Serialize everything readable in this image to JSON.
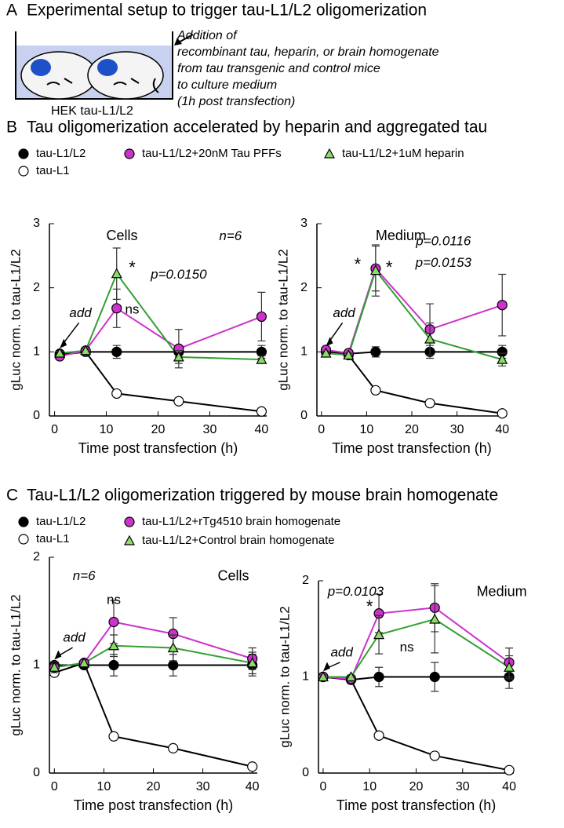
{
  "panel_a": {
    "label": "A",
    "title": "Experimental setup to trigger tau-L1/L2 oligomerization",
    "cell_label": "HEK tau-L1/L2",
    "note": [
      "Addition of",
      "recombinant tau, heparin, or brain homogenate",
      "from tau transgenic and control mice",
      "to culture medium",
      "(1h post transfection)"
    ]
  },
  "panels": [
    {
      "label": "B",
      "title": "Tau oligomerization accelerated by heparin and aggregated tau",
      "legend": [
        {
          "name": "tau-L1/L2",
          "color": "#000000",
          "marker": "circle",
          "fill": "#000000"
        },
        {
          "name": "tau-L1",
          "color": "#000000",
          "marker": "circle",
          "fill": "#ffffff"
        },
        {
          "name": "tau-L1/L2+20nM Tau PFFs",
          "color": "#cc33cc",
          "marker": "circle",
          "fill": "#cc33cc"
        },
        {
          "name": "tau-L1/L2+1uM heparin",
          "color": "#33a033",
          "marker": "triangle",
          "fill": "#88dd66"
        }
      ]
    },
    {
      "label": "C",
      "title": "Tau-L1/L2 oligomerization triggered by mouse brain homogenate",
      "legend": [
        {
          "name": "tau-L1/L2",
          "color": "#000000",
          "marker": "circle",
          "fill": "#000000"
        },
        {
          "name": "tau-L1",
          "color": "#000000",
          "marker": "circle",
          "fill": "#ffffff"
        },
        {
          "name": "tau-L1/L2+rTg4510 brain homogenate",
          "color": "#cc33cc",
          "marker": "circle",
          "fill": "#cc33cc"
        },
        {
          "name": "tau-L1/L2+Control brain homogenate",
          "color": "#33a033",
          "marker": "triangle",
          "fill": "#88dd66"
        }
      ]
    }
  ],
  "chart_data": [
    {
      "type": "line",
      "title": "Cells",
      "xlabel": "Time post transfection (h)",
      "ylabel": "gLuc norm. to tau-L1/L2",
      "x": [
        1,
        6,
        12,
        24,
        40
      ],
      "xlim": [
        -1,
        41
      ],
      "ylim": [
        0,
        3
      ],
      "xticks": [
        0,
        10,
        20,
        30,
        40
      ],
      "yticks": [
        0,
        1,
        2,
        3
      ],
      "series": [
        {
          "values": [
            0.97,
            1.0,
            1.0,
            1.0,
            1.0
          ],
          "errors": [
            0.05,
            0.05,
            0.1,
            0.08,
            0.1
          ]
        },
        {
          "values": [
            0.95,
            1.0,
            0.35,
            0.23,
            0.07
          ],
          "errors": [
            0,
            0,
            0,
            0,
            0
          ]
        },
        {
          "values": [
            0.93,
            1.02,
            1.68,
            1.05,
            1.55
          ],
          "errors": [
            0.03,
            0.05,
            0.3,
            0.3,
            0.38
          ]
        },
        {
          "values": [
            0.98,
            1.02,
            2.22,
            0.92,
            0.88
          ],
          "errors": [
            0.03,
            0.03,
            0.4,
            0.1,
            0.06
          ]
        }
      ],
      "annotations": [
        {
          "text": "n=6"
        },
        {
          "text": "*"
        },
        {
          "text": "p=0.0150",
          "color": "#228844"
        },
        {
          "text": "ns"
        },
        {
          "text": "add"
        }
      ]
    },
    {
      "type": "line",
      "title": "Medium",
      "xlabel": "Time post transfection (h)",
      "ylabel": "gLuc norm. to tau-L1/L2",
      "x": [
        1,
        6,
        12,
        24,
        40
      ],
      "xlim": [
        -1,
        41
      ],
      "ylim": [
        0,
        3
      ],
      "xticks": [
        0,
        10,
        20,
        30,
        40
      ],
      "yticks": [
        0,
        1,
        2,
        3
      ],
      "series": [
        {
          "values": [
            1.0,
            0.97,
            1.0,
            1.0,
            1.0
          ],
          "errors": [
            0.05,
            0.05,
            0.08,
            0.1,
            0.1
          ]
        },
        {
          "values": [
            1.0,
            0.95,
            0.4,
            0.2,
            0.04
          ],
          "errors": [
            0,
            0,
            0,
            0,
            0
          ]
        },
        {
          "values": [
            1.03,
            0.98,
            2.3,
            1.35,
            1.73
          ],
          "errors": [
            0.03,
            0.03,
            0.35,
            0.4,
            0.48
          ]
        },
        {
          "values": [
            0.98,
            0.95,
            2.27,
            1.2,
            0.88
          ],
          "errors": [
            0.03,
            0.03,
            0.4,
            0.25,
            0.1
          ]
        }
      ],
      "annotations": [
        {
          "text": "*"
        },
        {
          "text": "*"
        },
        {
          "text": "p=0.0116",
          "color": "#cc33cc"
        },
        {
          "text": "p=0.0153",
          "color": "#228844"
        },
        {
          "text": "add"
        }
      ]
    },
    {
      "type": "line",
      "title": "Cells",
      "xlabel": "Time post transfection (h)",
      "ylabel": "gLuc norm. to tau-L1/L2",
      "x": [
        0,
        6,
        12,
        24,
        40
      ],
      "xlim": [
        -1,
        41
      ],
      "ylim": [
        0,
        2
      ],
      "xticks": [
        0,
        10,
        20,
        30,
        40
      ],
      "yticks": [
        0,
        1,
        2
      ],
      "series": [
        {
          "values": [
            1.0,
            1.0,
            1.0,
            1.0,
            1.0
          ],
          "errors": [
            0.03,
            0.03,
            0.1,
            0.1,
            0.1
          ]
        },
        {
          "values": [
            0.93,
            1.02,
            0.34,
            0.23,
            0.06
          ],
          "errors": [
            0,
            0,
            0,
            0,
            0
          ]
        },
        {
          "values": [
            0.98,
            1.02,
            1.4,
            1.29,
            1.06
          ],
          "errors": [
            0.05,
            0.03,
            0.2,
            0.15,
            0.1
          ]
        },
        {
          "values": [
            0.98,
            1.02,
            1.18,
            1.16,
            1.02
          ],
          "errors": [
            0.03,
            0.03,
            0.1,
            0.12,
            0.1
          ]
        }
      ],
      "annotations": [
        {
          "text": "n=6"
        },
        {
          "text": "ns"
        },
        {
          "text": "add"
        }
      ]
    },
    {
      "type": "line",
      "title": "Medium",
      "xlabel": "Time post transfection (h)",
      "ylabel": "gLuc norm. to tau-L1/L2",
      "x": [
        0,
        6,
        12,
        24,
        40
      ],
      "xlim": [
        -1,
        41
      ],
      "ylim": [
        0,
        2
      ],
      "xticks": [
        0,
        10,
        20,
        30,
        40
      ],
      "yticks": [
        0,
        1,
        2
      ],
      "series": [
        {
          "values": [
            1.0,
            0.97,
            1.0,
            1.0,
            1.0
          ],
          "errors": [
            0.03,
            0.03,
            0.1,
            0.15,
            0.12
          ]
        },
        {
          "values": [
            1.0,
            0.97,
            0.39,
            0.18,
            0.03
          ],
          "errors": [
            0,
            0,
            0,
            0,
            0
          ]
        },
        {
          "values": [
            1.0,
            0.98,
            1.66,
            1.72,
            1.15
          ],
          "errors": [
            0.02,
            0.02,
            0.2,
            0.25,
            0.15
          ]
        },
        {
          "values": [
            1.0,
            1.0,
            1.44,
            1.6,
            1.1
          ],
          "errors": [
            0.02,
            0.02,
            0.2,
            0.35,
            0.12
          ]
        }
      ],
      "annotations": [
        {
          "text": "p=0.0103",
          "color": "#cc33cc"
        },
        {
          "text": "*"
        },
        {
          "text": "ns"
        },
        {
          "text": "add"
        }
      ]
    }
  ]
}
